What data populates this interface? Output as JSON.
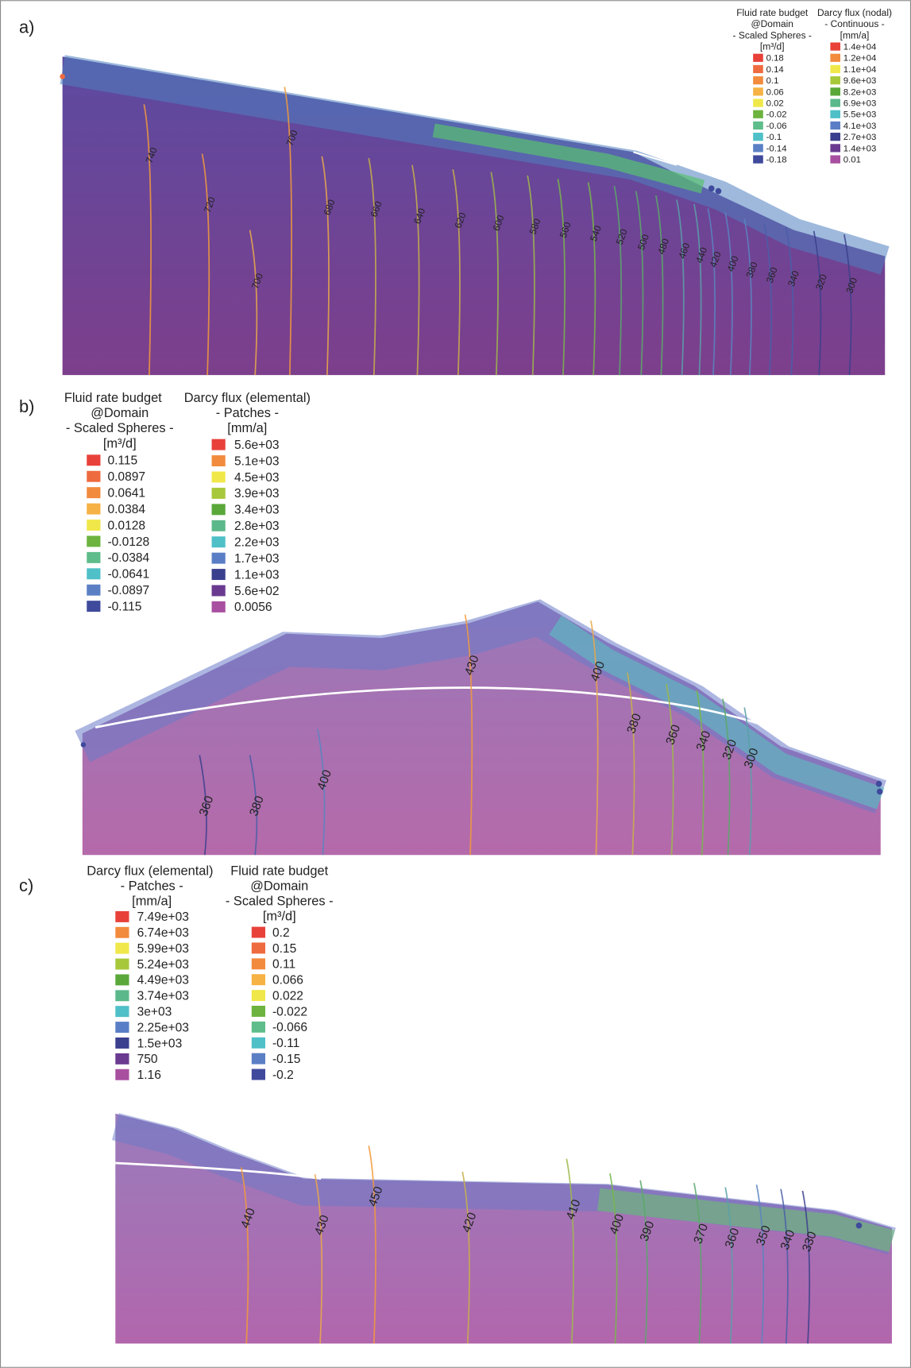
{
  "panels": [
    {
      "label": "a)",
      "legends": [
        {
          "title": [
            "Fluid rate budget",
            "@Domain",
            "- Scaled Spheres -",
            "[m³/d]"
          ],
          "entries": [
            {
              "label": "0.18",
              "color": "#e8413a"
            },
            {
              "label": "0.14",
              "color": "#ee6b3f"
            },
            {
              "label": "0.1",
              "color": "#f28b3d"
            },
            {
              "label": "0.06",
              "color": "#f6b244"
            },
            {
              "label": "0.02",
              "color": "#f0e84a"
            },
            {
              "label": "-0.02",
              "color": "#6db33f"
            },
            {
              "label": "-0.06",
              "color": "#5ebd8a"
            },
            {
              "label": "-0.1",
              "color": "#4fc0c8"
            },
            {
              "label": "-0.14",
              "color": "#5b7fc4"
            },
            {
              "label": "-0.18",
              "color": "#3f4a9c"
            }
          ]
        },
        {
          "title": [
            "Darcy flux (nodal)",
            "- Continuous -",
            "[mm/a]"
          ],
          "entries": [
            {
              "label": "1.4e+04",
              "color": "#e8413a"
            },
            {
              "label": "1.2e+04",
              "color": "#f28b3d"
            },
            {
              "label": "1.1e+04",
              "color": "#f0e84a"
            },
            {
              "label": "9.6e+03",
              "color": "#a8c83c"
            },
            {
              "label": "8.2e+03",
              "color": "#5aa83a"
            },
            {
              "label": "6.9e+03",
              "color": "#5bb88a"
            },
            {
              "label": "5.5e+03",
              "color": "#4fbfc8"
            },
            {
              "label": "4.1e+03",
              "color": "#5a7ec6"
            },
            {
              "label": "2.7e+03",
              "color": "#3a3f8e"
            },
            {
              "label": "1.4e+03",
              "color": "#6a3a90"
            },
            {
              "label": "0.01",
              "color": "#a84fa0"
            }
          ]
        }
      ],
      "contour_labels": [
        "740",
        "720",
        "700",
        "700",
        "680",
        "660",
        "640",
        "620",
        "600",
        "580",
        "560",
        "540",
        "520",
        "500",
        "480",
        "460",
        "440",
        "420",
        "400",
        "380",
        "360",
        "340",
        "320",
        "300"
      ]
    },
    {
      "label": "b)",
      "legends": [
        {
          "title": [
            "Fluid rate budget",
            "@Domain",
            "- Scaled Spheres -",
            "[m³/d]"
          ],
          "entries": [
            {
              "label": "0.115",
              "color": "#e8413a"
            },
            {
              "label": "0.0897",
              "color": "#ee6b3f"
            },
            {
              "label": "0.0641",
              "color": "#f28b3d"
            },
            {
              "label": "0.0384",
              "color": "#f6b244"
            },
            {
              "label": "0.0128",
              "color": "#f0e84a"
            },
            {
              "label": "-0.0128",
              "color": "#6db33f"
            },
            {
              "label": "-0.0384",
              "color": "#5ebd8a"
            },
            {
              "label": "-0.0641",
              "color": "#4fc0c8"
            },
            {
              "label": "-0.0897",
              "color": "#5b7fc4"
            },
            {
              "label": "-0.115",
              "color": "#3f4a9c"
            }
          ]
        },
        {
          "title": [
            "Darcy flux (elemental)",
            "- Patches -",
            "[mm/a]"
          ],
          "entries": [
            {
              "label": "5.6e+03",
              "color": "#e8413a"
            },
            {
              "label": "5.1e+03",
              "color": "#f28b3d"
            },
            {
              "label": "4.5e+03",
              "color": "#f0e84a"
            },
            {
              "label": "3.9e+03",
              "color": "#a8c83c"
            },
            {
              "label": "3.4e+03",
              "color": "#5aa83a"
            },
            {
              "label": "2.8e+03",
              "color": "#5bb88a"
            },
            {
              "label": "2.2e+03",
              "color": "#4fbfc8"
            },
            {
              "label": "1.7e+03",
              "color": "#5a7ec6"
            },
            {
              "label": "1.1e+03",
              "color": "#3a3f8e"
            },
            {
              "label": "5.6e+02",
              "color": "#6a3a90"
            },
            {
              "label": "0.0056",
              "color": "#a84fa0"
            }
          ]
        }
      ],
      "contour_labels": [
        "430",
        "400",
        "380",
        "360",
        "340",
        "320",
        "300",
        "400",
        "380",
        "360"
      ]
    },
    {
      "label": "c)",
      "legends": [
        {
          "title": [
            "Darcy flux (elemental)",
            "- Patches -",
            "[mm/a]"
          ],
          "entries": [
            {
              "label": "7.49e+03",
              "color": "#e8413a"
            },
            {
              "label": "6.74e+03",
              "color": "#f28b3d"
            },
            {
              "label": "5.99e+03",
              "color": "#f0e84a"
            },
            {
              "label": "5.24e+03",
              "color": "#a8c83c"
            },
            {
              "label": "4.49e+03",
              "color": "#5aa83a"
            },
            {
              "label": "3.74e+03",
              "color": "#5bb88a"
            },
            {
              "label": "3e+03",
              "color": "#4fbfc8"
            },
            {
              "label": "2.25e+03",
              "color": "#5a7ec6"
            },
            {
              "label": "1.5e+03",
              "color": "#3a3f8e"
            },
            {
              "label": "750",
              "color": "#6a3a90"
            },
            {
              "label": "1.16",
              "color": "#a84fa0"
            }
          ]
        },
        {
          "title": [
            "Fluid rate budget",
            "@Domain",
            "- Scaled Spheres -",
            "[m³/d]"
          ],
          "entries": [
            {
              "label": "0.2",
              "color": "#e8413a"
            },
            {
              "label": "0.15",
              "color": "#ee6b3f"
            },
            {
              "label": "0.11",
              "color": "#f28b3d"
            },
            {
              "label": "0.066",
              "color": "#f6b244"
            },
            {
              "label": "0.022",
              "color": "#f0e84a"
            },
            {
              "label": "-0.022",
              "color": "#6db33f"
            },
            {
              "label": "-0.066",
              "color": "#5ebd8a"
            },
            {
              "label": "-0.11",
              "color": "#4fc0c8"
            },
            {
              "label": "-0.15",
              "color": "#5b7fc4"
            },
            {
              "label": "-0.2",
              "color": "#3f4a9c"
            }
          ]
        }
      ],
      "contour_labels": [
        "450",
        "440",
        "430",
        "420",
        "410",
        "400",
        "390",
        "370",
        "360",
        "350",
        "340",
        "330"
      ]
    }
  ]
}
